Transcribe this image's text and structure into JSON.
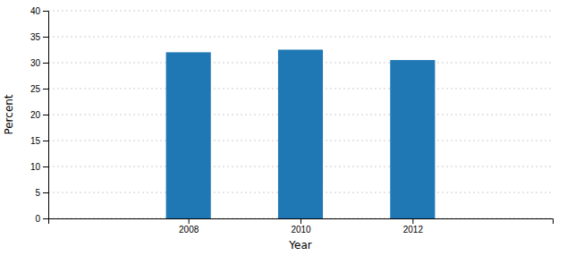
{
  "chart_data": {
    "type": "bar",
    "x": [
      2008,
      2010,
      2012
    ],
    "values": [
      32.0,
      32.5,
      30.5
    ],
    "xlabel": "Year",
    "ylabel": "Percent",
    "xlim": [
      2005.5,
      2014.5
    ],
    "xticks": [
      2008,
      2010,
      2012
    ],
    "ylim": [
      0,
      40
    ],
    "yticks": [
      0,
      5,
      10,
      15,
      20,
      25,
      30,
      35,
      40
    ],
    "grid": true
  }
}
